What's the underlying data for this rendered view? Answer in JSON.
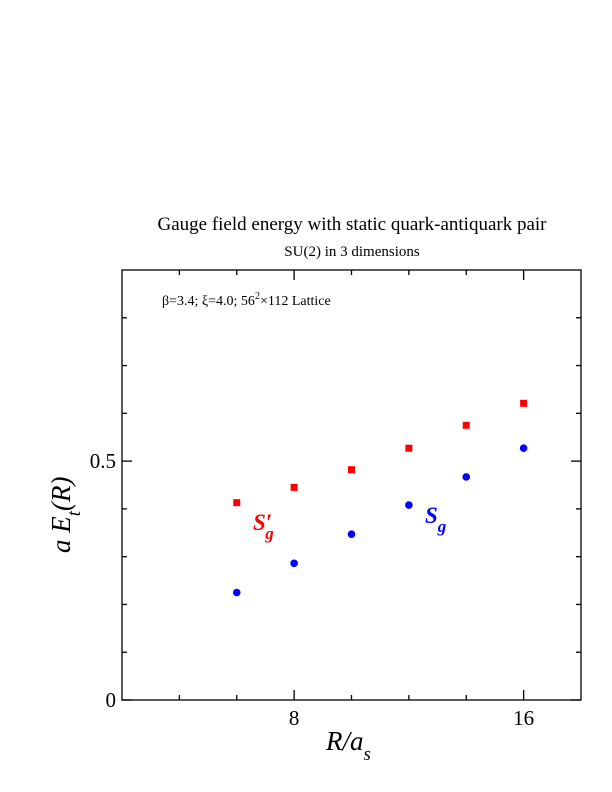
{
  "chart_data": {
    "type": "scatter",
    "title": "Gauge field energy with static quark-antiquark pair",
    "subtitle": "SU(2) in 3 dimensions",
    "annotation_params": {
      "prefix": "β=3.4;  ξ=4.0; 56",
      "exponent": "2",
      "suffix": "×112 Lattice"
    },
    "xlabel": {
      "main": "R/a",
      "sub": "s"
    },
    "ylabel": {
      "a": "a",
      "E": "E",
      "sub": "t",
      "arg": "(R)"
    },
    "xlim": [
      2,
      18
    ],
    "ylim": [
      0,
      0.9
    ],
    "x_ticks_major": [
      8,
      16
    ],
    "x_tick_labels": [
      "8",
      "16"
    ],
    "x_ticks_minor": [
      4,
      6,
      10,
      12,
      14
    ],
    "y_ticks_major": [
      0,
      0.5
    ],
    "y_tick_labels": [
      "0",
      "0.5"
    ],
    "y_ticks_minor": [
      0.1,
      0.2,
      0.3,
      0.4,
      0.6,
      0.7,
      0.8
    ],
    "series": [
      {
        "name": "S'g",
        "label_main": "S",
        "label_prime": "′",
        "label_sub": "g",
        "color": "#ff0000",
        "marker": "square",
        "x": [
          6,
          8,
          10,
          12,
          14,
          16
        ],
        "y": [
          0.413,
          0.445,
          0.482,
          0.527,
          0.575,
          0.621
        ]
      },
      {
        "name": "Sg",
        "label_main": "S",
        "label_sub": "g",
        "color": "#0000ff",
        "marker": "circle",
        "x": [
          6,
          8,
          10,
          12,
          14,
          16
        ],
        "y": [
          0.225,
          0.286,
          0.347,
          0.408,
          0.467,
          0.527
        ]
      }
    ]
  }
}
